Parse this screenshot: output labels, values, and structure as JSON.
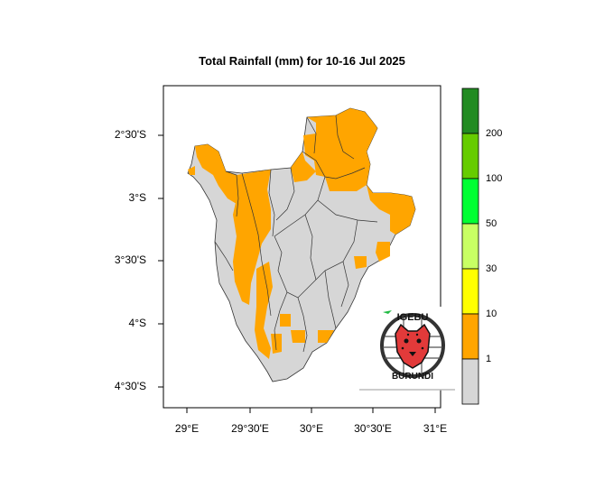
{
  "title": "Total Rainfall (mm) for 10-16 Jul 2025",
  "map": {
    "lat_ticks": [
      "2°30'S",
      "3°S",
      "3°30'S",
      "4°S",
      "4°30'S"
    ],
    "lon_ticks": [
      "29°E",
      "29°30'E",
      "30°E",
      "30°30'E",
      "31°E"
    ],
    "colors": {
      "land_no_rain": "#d6d6d6",
      "rain_1_10": "#ffa500",
      "boundary": "#333333"
    }
  },
  "colorbar": {
    "labels": [
      "1",
      "10",
      "30",
      "50",
      "100",
      "200"
    ],
    "colors": [
      "#d6d6d6",
      "#ffa500",
      "#ffff00",
      "#c8ff64",
      "#00ff33",
      "#66cc00",
      "#228b22"
    ]
  },
  "logo": {
    "top_text": "IGEBU",
    "bottom_text": "BURUNDI",
    "icon": "leopard-head-icon"
  }
}
